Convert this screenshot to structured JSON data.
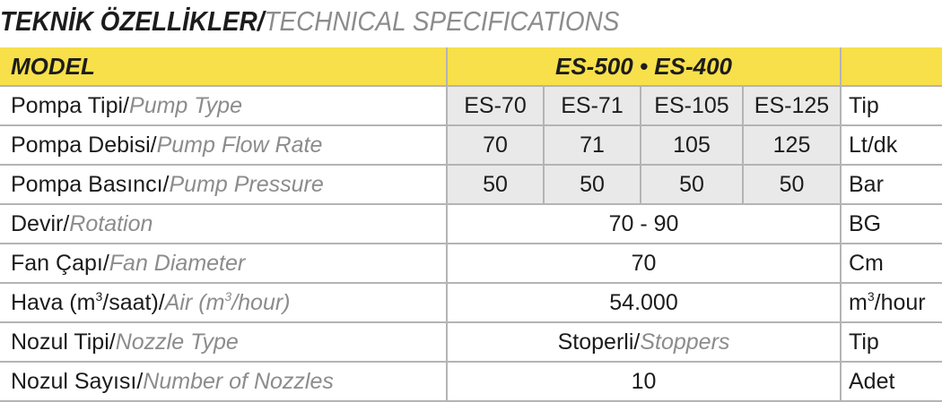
{
  "heading": {
    "tr": "TEKNİK ÖZELLİKLER/",
    "en": "TECHNICAL SPECIFICATIONS"
  },
  "header": {
    "model": "MODEL",
    "models": "ES-500 • ES-400",
    "unit": ""
  },
  "rows": [
    {
      "tr": "Pompa Tipi/",
      "en": "Pump Type",
      "values": [
        "ES-70",
        "ES-71",
        "ES-105",
        "ES-125"
      ],
      "unit": "Tip"
    },
    {
      "tr": "Pompa Debisi/",
      "en": "Pump Flow Rate",
      "values": [
        "70",
        "71",
        "105",
        "125"
      ],
      "unit": "Lt/dk"
    },
    {
      "tr": "Pompa Basıncı/",
      "en": "Pump Pressure",
      "values": [
        "50",
        "50",
        "50",
        "50"
      ],
      "unit": "Bar"
    },
    {
      "tr": "Devir/",
      "en": "Rotation",
      "value": "70 - 90",
      "unit": "BG"
    },
    {
      "tr": "Fan Çapı/",
      "en": "Fan Diameter",
      "value": "70",
      "unit": "Cm"
    },
    {
      "tr_a": "Hava (m",
      "tr_sup": "3",
      "tr_b": "/saat)/",
      "en_a": "Air (m",
      "en_sup": "3",
      "en_b": "/hour)",
      "value": "54.000",
      "unit_a": "m",
      "unit_sup": "3",
      "unit_b": "/hour"
    },
    {
      "tr": "Nozul Tipi/",
      "en": "Nozzle Type",
      "value_tr": "Stoperli/",
      "value_en": "Stoppers",
      "unit": "Tip"
    },
    {
      "tr": "Nozul Sayısı/",
      "en": "Number of Nozzles",
      "value": "10",
      "unit": "Adet"
    }
  ]
}
